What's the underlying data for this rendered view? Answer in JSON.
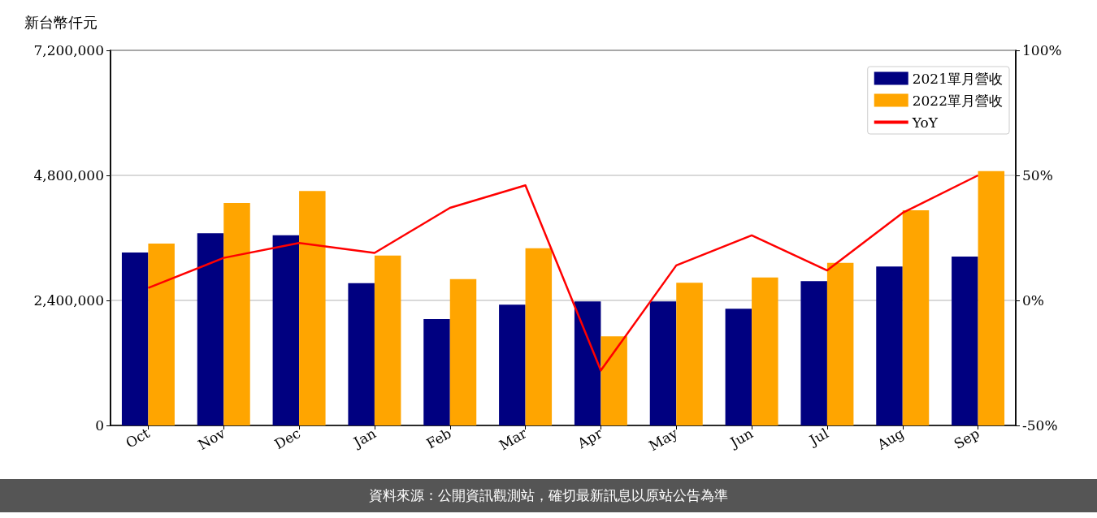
{
  "chart_data": {
    "type": "bar",
    "ylabel": "新台幣仟元",
    "categories": [
      "Oct",
      "Nov",
      "Dec",
      "Jan",
      "Feb",
      "Mar",
      "Apr",
      "May",
      "Jun",
      "Jul",
      "Aug",
      "Sep"
    ],
    "series": [
      {
        "name": "2021單月營收",
        "color": "#000080",
        "values": [
          3320000,
          3690000,
          3650000,
          2730000,
          2040000,
          2320000,
          2380000,
          2380000,
          2240000,
          2770000,
          3050000,
          3240000
        ]
      },
      {
        "name": "2022單月營收",
        "color": "#ffa500",
        "values": [
          3490000,
          4270000,
          4500000,
          3260000,
          2810000,
          3400000,
          1710000,
          2740000,
          2840000,
          3120000,
          4130000,
          4880000
        ]
      },
      {
        "name": "YoY",
        "type": "line",
        "axis": "y2",
        "color": "#ff0000",
        "values": [
          5,
          17,
          23,
          19,
          37,
          46,
          -28,
          14,
          26,
          12,
          35,
          50
        ]
      }
    ],
    "ylim": [
      0,
      7200000
    ],
    "yticks": [
      {
        "value": 0,
        "label": "0"
      },
      {
        "value": 2400000,
        "label": "2,400,000"
      },
      {
        "value": 4800000,
        "label": "4,800,000"
      },
      {
        "value": 7200000,
        "label": "7,200,000"
      }
    ],
    "y2lim": [
      -50,
      100
    ],
    "y2ticks": [
      {
        "value": -50,
        "label": "-50%"
      },
      {
        "value": 0,
        "label": "0%"
      },
      {
        "value": 50,
        "label": "50%"
      },
      {
        "value": 100,
        "label": "100%"
      }
    ],
    "grid": "y",
    "legend": "top right",
    "annotations": [
      "資料來源：公開資訊觀測站，確切最新訊息以原站公告為準"
    ]
  }
}
